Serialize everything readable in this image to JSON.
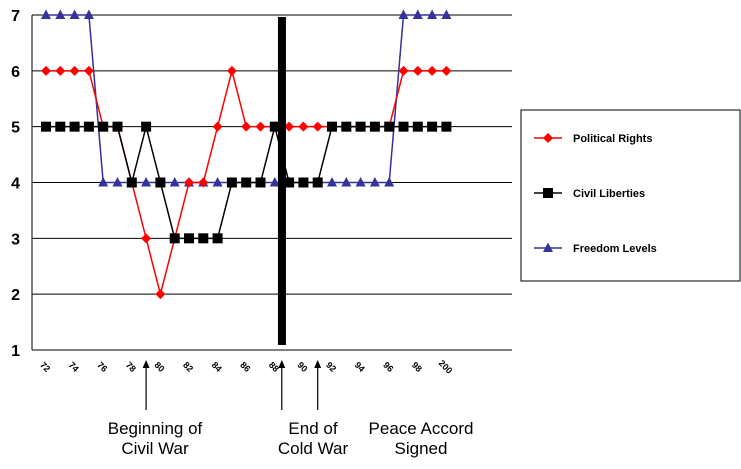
{
  "chart_data": {
    "type": "line",
    "x_tick_labels": [
      "72",
      "74",
      "76",
      "78",
      "80",
      "82",
      "84",
      "86",
      "88",
      "90",
      "92",
      "94",
      "96",
      "98",
      "200"
    ],
    "ylim": [
      1,
      7
    ],
    "y_ticks": [
      1,
      2,
      3,
      4,
      5,
      6,
      7
    ],
    "grid": "horizontal",
    "legend_position": "right",
    "series": [
      {
        "name": "Political Rights",
        "color": "#ff0000",
        "marker": "diamond",
        "values": [
          6,
          6,
          6,
          6,
          5,
          5,
          4,
          3,
          2,
          3,
          4,
          4,
          5,
          6,
          5,
          5,
          5,
          5,
          5,
          5,
          5,
          5,
          5,
          5,
          5,
          6,
          6,
          6,
          6
        ]
      },
      {
        "name": "Civil Liberties",
        "color": "#000000",
        "marker": "square",
        "values": [
          5,
          5,
          5,
          5,
          5,
          5,
          4,
          5,
          4,
          3,
          3,
          3,
          3,
          4,
          4,
          4,
          5,
          4,
          4,
          4,
          5,
          5,
          5,
          5,
          5,
          5,
          5,
          5,
          5
        ]
      },
      {
        "name": "Freedom Levels",
        "color": "#333399",
        "marker": "triangle",
        "values": [
          7,
          7,
          7,
          7,
          4,
          4,
          4,
          4,
          4,
          4,
          4,
          4,
          4,
          4,
          4,
          4,
          4,
          4,
          4,
          4,
          4,
          4,
          4,
          4,
          4,
          7,
          7,
          7,
          7
        ]
      }
    ],
    "annotations": [
      {
        "text_lines": [
          "Beginning of",
          "Civil War"
        ],
        "x_index": 7
      },
      {
        "text_lines": [
          "End of",
          "Cold War"
        ],
        "x_index": 16
      },
      {
        "text_lines": [
          "Peace Accord",
          "Signed"
        ],
        "x_index": 19
      }
    ],
    "vertical_marker_index": 16.5
  }
}
